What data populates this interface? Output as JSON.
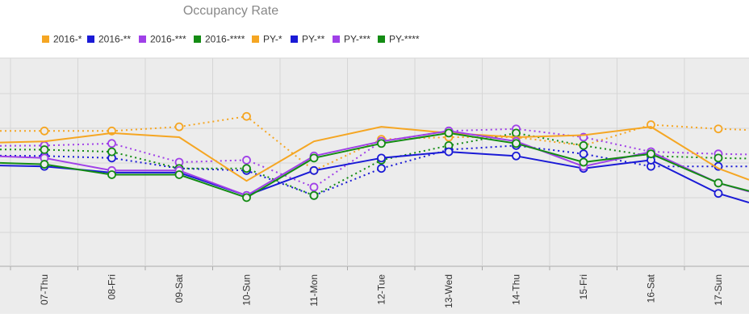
{
  "chart_data": {
    "type": "line",
    "title": "Occupancy Rate",
    "categories": [
      "07-Thu",
      "08-Fri",
      "09-Sat",
      "10-Sun",
      "11-Mon",
      "12-Tue",
      "13-Wed",
      "14-Thu",
      "15-Fri",
      "16-Sat",
      "17-Sun"
    ],
    "grid": true,
    "legend_position": "top",
    "series": [
      {
        "name": "2016-*",
        "color": "#f5a623",
        "style": "solid",
        "values": [
          60,
          64,
          62,
          41,
          60,
          67,
          64,
          62,
          63,
          67,
          47
        ]
      },
      {
        "name": "2016-**",
        "color": "#1a1ad6",
        "style": "solid",
        "values": [
          48,
          45,
          45,
          34,
          46,
          52,
          55,
          53,
          47,
          51,
          35
        ]
      },
      {
        "name": "2016-***",
        "color": "#a040e8",
        "style": "solid",
        "values": [
          52,
          46,
          46,
          34,
          53,
          60,
          65,
          60,
          48,
          55,
          40
        ]
      },
      {
        "name": "2016-****",
        "color": "#148c14",
        "style": "solid",
        "values": [
          49,
          44,
          44,
          33,
          52,
          59,
          64,
          59,
          50,
          54,
          40
        ]
      },
      {
        "name": "PY-*",
        "color": "#f5a623",
        "style": "dotted",
        "values": [
          65,
          65,
          67,
          72,
          46,
          61,
          62,
          62,
          58,
          68,
          66
        ]
      },
      {
        "name": "PY-**",
        "color": "#1a1ad6",
        "style": "dotted",
        "values": [
          53,
          52,
          47,
          46,
          34,
          47,
          56,
          58,
          54,
          48,
          48
        ]
      },
      {
        "name": "PY-***",
        "color": "#a040e8",
        "style": "dotted",
        "values": [
          58,
          59,
          50,
          51,
          38,
          60,
          65,
          66,
          62,
          55,
          54
        ]
      },
      {
        "name": "PY-****",
        "color": "#148c14",
        "style": "dotted",
        "values": [
          56,
          55,
          47,
          47,
          34,
          51,
          58,
          64,
          58,
          53,
          52
        ]
      }
    ]
  }
}
